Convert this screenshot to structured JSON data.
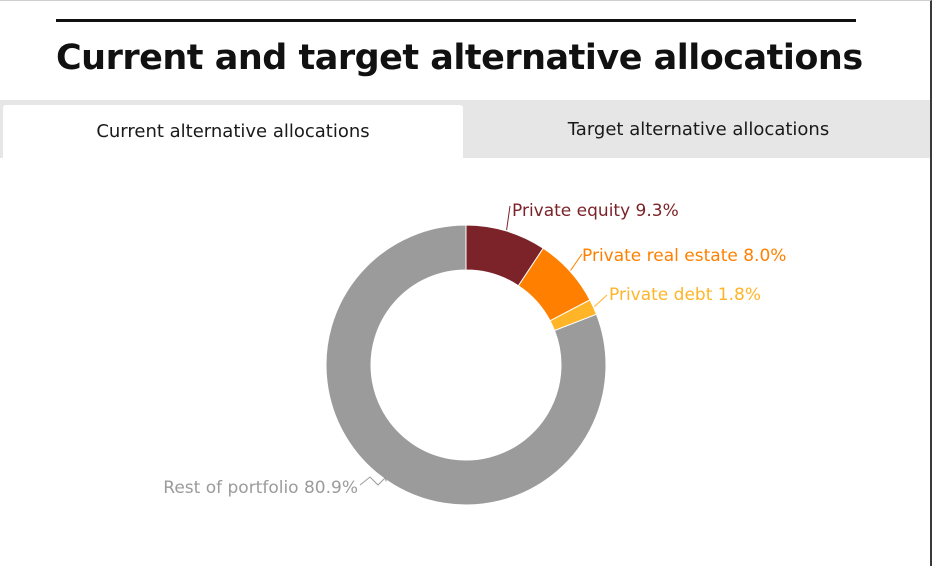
{
  "title": "Current and target alternative allocations",
  "tabs": [
    {
      "label": "Current alternative allocations",
      "active": true
    },
    {
      "label": "Target alternative allocations",
      "active": false
    }
  ],
  "chart_data": {
    "type": "pie",
    "donut": true,
    "slices": [
      {
        "label": "Private equity 9.3%",
        "value": 9.3,
        "color": "#7b2328",
        "label_color": "#7b2328"
      },
      {
        "label": "Private real estate 8.0%",
        "value": 8.0,
        "color": "#ff8000",
        "label_color": "#ff8000"
      },
      {
        "label": "Private debt 1.8%",
        "value": 1.8,
        "color": "#ffb527",
        "label_color": "#ffb527"
      },
      {
        "label": "Rest of portfolio 80.9%",
        "value": 80.9,
        "color": "#9b9b9b",
        "label_color": "#9b9b9b"
      }
    ],
    "start_angle_deg": 0,
    "direction": "clockwise",
    "legend": "none"
  }
}
